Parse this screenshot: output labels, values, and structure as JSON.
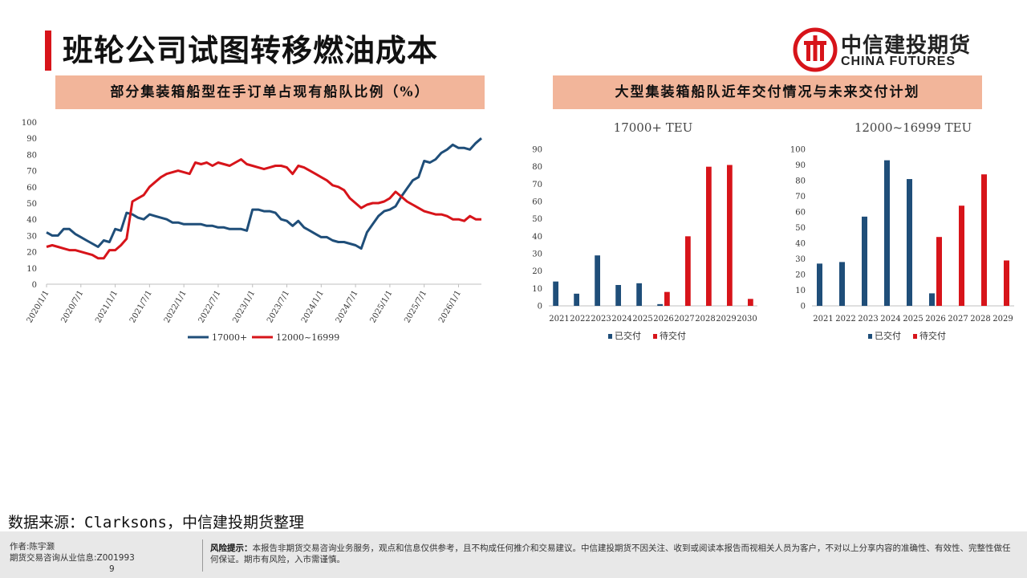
{
  "header": {
    "title": "班轮公司试图转移燃油成本",
    "logo_cn": "中信建投期货",
    "logo_en": "CHINA FUTURES",
    "accent_color": "#d7141a"
  },
  "left_panel": {
    "heading": "部分集装箱船型在手订单占现有船队比例（%）"
  },
  "right_panel": {
    "heading": "大型集装箱船队近年交付情况与未来交付计划"
  },
  "source": "数据来源：Clarksons，中信建投期货整理",
  "footer": {
    "author_line1": "作者:陈宇灏",
    "author_line2": "期货交易咨询从业信息:Z001993",
    "author_line3": "9",
    "risk_label": "风险提示：",
    "risk_text": "本报告非期货交易咨询业务服务，观点和信息仅供参考，且不构成任何推介和交易建议。中信建投期货不因关注、收到或阅读本报告而视相关人员为客户，不对以上分享内容的准确性、有效性、完整性做任何保证。期市有风险，入市需谨慎。"
  },
  "chart_data": [
    {
      "type": "line",
      "title": "",
      "ylim": [
        0,
        100
      ],
      "yticks": [
        0,
        10,
        20,
        30,
        40,
        50,
        60,
        70,
        80,
        90,
        100
      ],
      "xlim": [
        "2020/1/1",
        "2026/4/1"
      ],
      "xtick_labels": [
        "2020/1/1",
        "2020/7/1",
        "2021/1/1",
        "2021/7/1",
        "2022/1/1",
        "2022/7/1",
        "2023/1/1",
        "2023/7/1",
        "2024/1/1",
        "2024/7/1",
        "2025/1/1",
        "2025/7/1",
        "2026/1/1"
      ],
      "legend_position": "bottom",
      "series": [
        {
          "name": "17000+",
          "color": "#1f4e79",
          "points": [
            [
              "2020/1/1",
              32
            ],
            [
              "2020/2/1",
              30
            ],
            [
              "2020/3/1",
              30
            ],
            [
              "2020/4/1",
              34
            ],
            [
              "2020/5/1",
              34
            ],
            [
              "2020/6/1",
              31
            ],
            [
              "2020/7/1",
              29
            ],
            [
              "2020/8/1",
              27
            ],
            [
              "2020/9/1",
              25
            ],
            [
              "2020/10/1",
              23
            ],
            [
              "2020/11/1",
              27
            ],
            [
              "2020/12/1",
              26
            ],
            [
              "2021/1/1",
              34
            ],
            [
              "2021/2/1",
              33
            ],
            [
              "2021/3/1",
              44
            ],
            [
              "2021/4/1",
              43
            ],
            [
              "2021/5/1",
              41
            ],
            [
              "2021/6/1",
              40
            ],
            [
              "2021/7/1",
              43
            ],
            [
              "2021/8/1",
              42
            ],
            [
              "2021/9/1",
              41
            ],
            [
              "2021/10/1",
              40
            ],
            [
              "2021/11/1",
              38
            ],
            [
              "2021/12/1",
              38
            ],
            [
              "2022/1/1",
              37
            ],
            [
              "2022/2/1",
              37
            ],
            [
              "2022/3/1",
              37
            ],
            [
              "2022/4/1",
              37
            ],
            [
              "2022/5/1",
              36
            ],
            [
              "2022/6/1",
              36
            ],
            [
              "2022/7/1",
              35
            ],
            [
              "2022/8/1",
              35
            ],
            [
              "2022/9/1",
              34
            ],
            [
              "2022/10/1",
              34
            ],
            [
              "2022/11/1",
              34
            ],
            [
              "2022/12/1",
              33
            ],
            [
              "2023/1/1",
              46
            ],
            [
              "2023/2/1",
              46
            ],
            [
              "2023/3/1",
              45
            ],
            [
              "2023/4/1",
              45
            ],
            [
              "2023/5/1",
              44
            ],
            [
              "2023/6/1",
              40
            ],
            [
              "2023/7/1",
              39
            ],
            [
              "2023/8/1",
              36
            ],
            [
              "2023/9/1",
              39
            ],
            [
              "2023/10/1",
              35
            ],
            [
              "2023/11/1",
              33
            ],
            [
              "2023/12/1",
              31
            ],
            [
              "2024/1/1",
              29
            ],
            [
              "2024/2/1",
              29
            ],
            [
              "2024/3/1",
              27
            ],
            [
              "2024/4/1",
              26
            ],
            [
              "2024/5/1",
              26
            ],
            [
              "2024/6/1",
              25
            ],
            [
              "2024/7/1",
              24
            ],
            [
              "2024/8/1",
              22
            ],
            [
              "2024/9/1",
              32
            ],
            [
              "2024/10/1",
              37
            ],
            [
              "2024/11/1",
              42
            ],
            [
              "2024/12/1",
              45
            ],
            [
              "2025/1/1",
              46
            ],
            [
              "2025/2/1",
              48
            ],
            [
              "2025/3/1",
              54
            ],
            [
              "2025/4/1",
              59
            ],
            [
              "2025/5/1",
              64
            ],
            [
              "2025/6/1",
              66
            ],
            [
              "2025/7/1",
              76
            ],
            [
              "2025/8/1",
              75
            ],
            [
              "2025/9/1",
              77
            ],
            [
              "2025/10/1",
              81
            ],
            [
              "2025/11/1",
              83
            ],
            [
              "2025/12/1",
              86
            ],
            [
              "2026/1/1",
              84
            ],
            [
              "2026/2/1",
              84
            ],
            [
              "2026/3/1",
              83
            ],
            [
              "2026/4/1",
              87
            ],
            [
              "2026/5/1",
              90
            ]
          ]
        },
        {
          "name": "12000~16999",
          "color": "#d7141a",
          "points": [
            [
              "2020/1/1",
              23
            ],
            [
              "2020/2/1",
              24
            ],
            [
              "2020/3/1",
              23
            ],
            [
              "2020/4/1",
              22
            ],
            [
              "2020/5/1",
              21
            ],
            [
              "2020/6/1",
              21
            ],
            [
              "2020/7/1",
              20
            ],
            [
              "2020/8/1",
              19
            ],
            [
              "2020/9/1",
              18
            ],
            [
              "2020/10/1",
              16
            ],
            [
              "2020/11/1",
              16
            ],
            [
              "2020/12/1",
              21
            ],
            [
              "2021/1/1",
              21
            ],
            [
              "2021/2/1",
              24
            ],
            [
              "2021/3/1",
              28
            ],
            [
              "2021/4/1",
              51
            ],
            [
              "2021/5/1",
              53
            ],
            [
              "2021/6/1",
              55
            ],
            [
              "2021/7/1",
              60
            ],
            [
              "2021/8/1",
              63
            ],
            [
              "2021/9/1",
              66
            ],
            [
              "2021/10/1",
              68
            ],
            [
              "2021/11/1",
              69
            ],
            [
              "2021/12/1",
              70
            ],
            [
              "2022/1/1",
              69
            ],
            [
              "2022/2/1",
              68
            ],
            [
              "2022/3/1",
              75
            ],
            [
              "2022/4/1",
              74
            ],
            [
              "2022/5/1",
              75
            ],
            [
              "2022/6/1",
              73
            ],
            [
              "2022/7/1",
              75
            ],
            [
              "2022/8/1",
              74
            ],
            [
              "2022/9/1",
              73
            ],
            [
              "2022/10/1",
              75
            ],
            [
              "2022/11/1",
              77
            ],
            [
              "2022/12/1",
              74
            ],
            [
              "2023/1/1",
              73
            ],
            [
              "2023/2/1",
              72
            ],
            [
              "2023/3/1",
              71
            ],
            [
              "2023/4/1",
              72
            ],
            [
              "2023/5/1",
              73
            ],
            [
              "2023/6/1",
              73
            ],
            [
              "2023/7/1",
              72
            ],
            [
              "2023/8/1",
              68
            ],
            [
              "2023/9/1",
              73
            ],
            [
              "2023/10/1",
              72
            ],
            [
              "2023/11/1",
              70
            ],
            [
              "2023/12/1",
              68
            ],
            [
              "2024/1/1",
              66
            ],
            [
              "2024/2/1",
              64
            ],
            [
              "2024/3/1",
              61
            ],
            [
              "2024/4/1",
              60
            ],
            [
              "2024/5/1",
              58
            ],
            [
              "2024/6/1",
              53
            ],
            [
              "2024/7/1",
              50
            ],
            [
              "2024/8/1",
              47
            ],
            [
              "2024/9/1",
              49
            ],
            [
              "2024/10/1",
              50
            ],
            [
              "2024/11/1",
              50
            ],
            [
              "2024/12/1",
              51
            ],
            [
              "2025/1/1",
              53
            ],
            [
              "2025/2/1",
              57
            ],
            [
              "2025/3/1",
              54
            ],
            [
              "2025/4/1",
              51
            ],
            [
              "2025/5/1",
              49
            ],
            [
              "2025/6/1",
              47
            ],
            [
              "2025/7/1",
              45
            ],
            [
              "2025/8/1",
              44
            ],
            [
              "2025/9/1",
              43
            ],
            [
              "2025/10/1",
              43
            ],
            [
              "2025/11/1",
              42
            ],
            [
              "2025/12/1",
              40
            ],
            [
              "2026/1/1",
              40
            ],
            [
              "2026/2/1",
              39
            ],
            [
              "2026/3/1",
              42
            ],
            [
              "2026/4/1",
              40
            ],
            [
              "2026/5/1",
              40
            ]
          ]
        }
      ]
    },
    {
      "type": "bar",
      "title": "17000+ TEU",
      "categories": [
        "2021",
        "2022",
        "2023",
        "2024",
        "2025",
        "2026",
        "2027",
        "2028",
        "2029",
        "2030"
      ],
      "ylim": [
        0,
        90
      ],
      "yticks": [
        0,
        10,
        20,
        30,
        40,
        50,
        60,
        70,
        80,
        90
      ],
      "legend_position": "bottom",
      "series": [
        {
          "name": "已交付",
          "color": "#1f4e79",
          "values": [
            14,
            7,
            29,
            12,
            13,
            1,
            0,
            0,
            0,
            0
          ]
        },
        {
          "name": "待交付",
          "color": "#d7141a",
          "values": [
            0,
            0,
            0,
            0,
            0,
            8,
            40,
            80,
            81,
            4
          ]
        }
      ]
    },
    {
      "type": "bar",
      "title": "12000~16999 TEU",
      "categories": [
        "2021",
        "2022",
        "2023",
        "2024",
        "2025",
        "2026",
        "2027",
        "2028",
        "2029"
      ],
      "ylim": [
        0,
        100
      ],
      "yticks": [
        0,
        10,
        20,
        30,
        40,
        50,
        60,
        70,
        80,
        90,
        100
      ],
      "legend_position": "bottom",
      "series": [
        {
          "name": "已交付",
          "color": "#1f4e79",
          "values": [
            27,
            28,
            57,
            93,
            81,
            8,
            0,
            0,
            0
          ]
        },
        {
          "name": "待交付",
          "color": "#d7141a",
          "values": [
            0,
            0,
            0,
            0,
            0,
            44,
            64,
            84,
            29
          ]
        }
      ]
    }
  ]
}
